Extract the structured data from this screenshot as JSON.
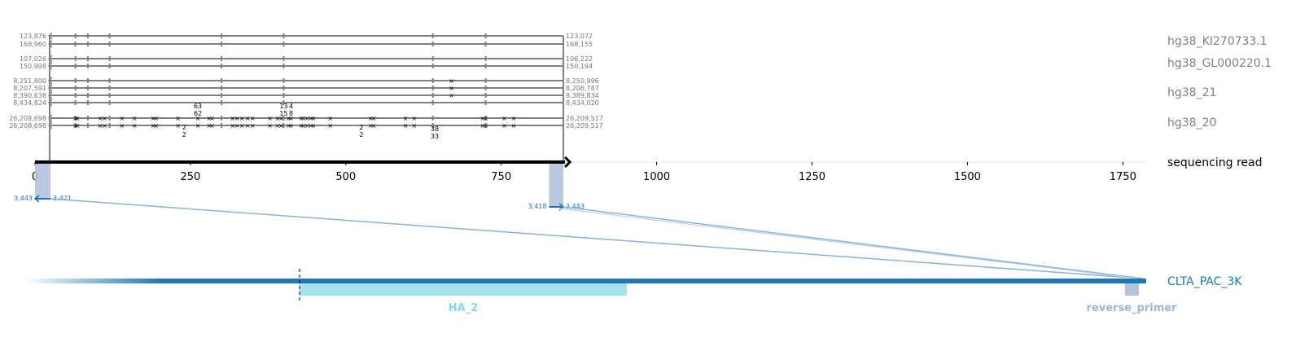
{
  "chart_data": {
    "type": "alignment-diagram",
    "x_axis": {
      "ticks": [
        0,
        250,
        500,
        750,
        1000,
        1250,
        1500,
        1750
      ],
      "range": [
        0,
        1800
      ]
    },
    "read": {
      "name": "sequencing read",
      "length": 850
    },
    "references": [
      {
        "name": "hg38_KI270733.1",
        "rows": [
          {
            "left": "123,876",
            "right": "123,072",
            "marks": []
          },
          {
            "left": "168,960",
            "right": "168,155",
            "marks": []
          }
        ]
      },
      {
        "name": "hg38_GL000220.1",
        "rows": [
          {
            "left": "107,026",
            "right": "106,222",
            "marks": []
          },
          {
            "left": "150,998",
            "right": "150,194",
            "marks": []
          }
        ]
      },
      {
        "name": "hg38_21",
        "rows": [
          {
            "left": "8,251,800",
            "right": "8,250,996",
            "marks": [
              670
            ]
          },
          {
            "left": "8,207,591",
            "right": "8,206,787",
            "marks": [
              670
            ]
          },
          {
            "left": "8,390,638",
            "right": "8,389,834",
            "marks": [
              670
            ]
          },
          {
            "left": "8,434,824",
            "right": "8,434,020",
            "marks": []
          }
        ]
      },
      {
        "name": "hg38_20",
        "rows": [
          {
            "left": "26,208,698",
            "right": "26,209,517",
            "marks": [
              65,
              68,
              105,
              112,
              140,
              160,
              190,
              195,
              230,
              262,
              280,
              285,
              318,
              325,
              333,
              342,
              350,
              378,
              390,
              396,
              408,
              412,
              428,
              432,
              438,
              444,
              448,
              475,
              540,
              545,
              596,
              610,
              720,
              725,
              755,
              770
            ]
          },
          {
            "left": "26,208,698",
            "right": "26,209,517",
            "marks": [
              65,
              68,
              105,
              112,
              140,
              160,
              190,
              195,
              230,
              262,
              280,
              285,
              318,
              325,
              333,
              342,
              350,
              378,
              390,
              396,
              408,
              412,
              428,
              432,
              438,
              444,
              448,
              475,
              540,
              545,
              596,
              610,
              720,
              725,
              755,
              770
            ]
          }
        ]
      }
    ],
    "insertions_above": [
      {
        "pos": 262,
        "label": "63"
      },
      {
        "pos": 262,
        "label": "62"
      },
      {
        "pos": 400,
        "label": "13"
      },
      {
        "pos": 412,
        "label": "4"
      },
      {
        "pos": 400,
        "label": "15"
      },
      {
        "pos": 412,
        "label": "8"
      }
    ],
    "insertions_below": [
      {
        "pos": 240,
        "label": "2"
      },
      {
        "pos": 240,
        "label": "2"
      },
      {
        "pos": 525,
        "label": "2"
      },
      {
        "pos": 525,
        "label": "2"
      },
      {
        "pos": 643,
        "label": "38"
      },
      {
        "pos": 643,
        "label": "33"
      }
    ],
    "read_alignments": [
      {
        "start": 0,
        "end": 25,
        "left": "3,443",
        "right": "3,421",
        "direction": "reverse"
      },
      {
        "start": 827,
        "end": 850,
        "left": "3,418",
        "right": "3,443",
        "direction": "forward"
      }
    ],
    "target": {
      "name": "CLTA_PAC_3K",
      "features": [
        {
          "name": "HA_2",
          "color": "#a6e3ef"
        },
        {
          "name": "reverse_primer",
          "color": "#b3c3df"
        }
      ]
    },
    "colors": {
      "reference": "#808080",
      "read": "#000000",
      "target": "#1f77b4",
      "alignment": "#b3c3df"
    }
  }
}
